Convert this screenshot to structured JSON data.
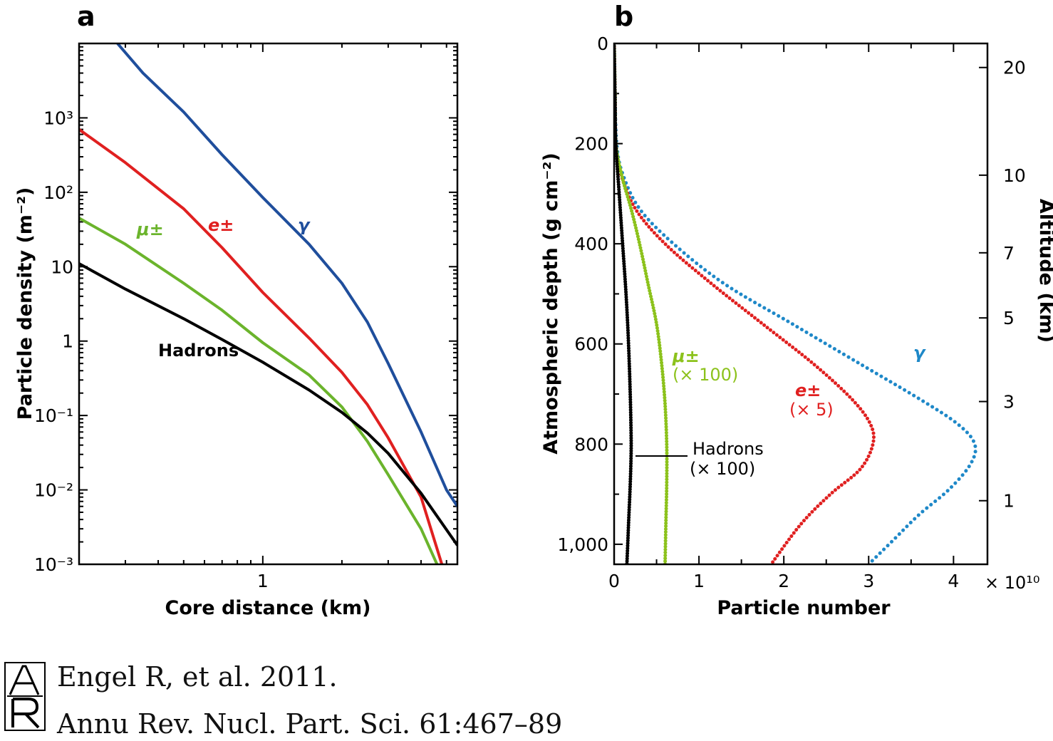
{
  "figure": {
    "colors": {
      "gamma_a": "#1f4e9c",
      "electron": "#e02020",
      "muon": "#6bb42c",
      "hadron": "#000000",
      "gamma_b": "#1e88c8",
      "muon_b": "#8cc21c"
    }
  },
  "chart_data": [
    {
      "panel": "a",
      "type": "line",
      "xlabel": "Core distance (km)",
      "ylabel": "Particle density (m⁻²)",
      "x_scale": "log",
      "y_scale": "log",
      "xlim": [
        0.2,
        5.5
      ],
      "ylim": [
        0.001,
        10000
      ],
      "x_ticks": [
        {
          "v": 1,
          "label": "1"
        }
      ],
      "y_ticks": [
        {
          "v": 1000,
          "label": "10³"
        },
        {
          "v": 100,
          "label": "10²"
        },
        {
          "v": 10,
          "label": "10"
        },
        {
          "v": 1,
          "label": "1"
        },
        {
          "v": 0.1,
          "label": "10⁻¹"
        },
        {
          "v": 0.01,
          "label": "10⁻²"
        },
        {
          "v": 0.001,
          "label": "10⁻³"
        }
      ],
      "series": [
        {
          "name": "γ",
          "color": "#1f4e9c",
          "points": [
            [
              0.28,
              10000
            ],
            [
              0.35,
              4000
            ],
            [
              0.5,
              1200
            ],
            [
              0.7,
              320
            ],
            [
              1,
              85
            ],
            [
              1.5,
              20
            ],
            [
              2,
              6
            ],
            [
              2.5,
              1.8
            ],
            [
              3,
              0.5
            ],
            [
              4,
              0.06
            ],
            [
              5,
              0.01
            ],
            [
              5.5,
              0.006
            ]
          ]
        },
        {
          "name": "e±",
          "color": "#e02020",
          "points": [
            [
              0.2,
              700
            ],
            [
              0.3,
              250
            ],
            [
              0.5,
              60
            ],
            [
              0.7,
              18
            ],
            [
              1,
              4.5
            ],
            [
              1.5,
              1.1
            ],
            [
              2,
              0.38
            ],
            [
              2.5,
              0.14
            ],
            [
              3,
              0.05
            ],
            [
              4,
              0.008
            ],
            [
              4.8,
              0.001
            ]
          ]
        },
        {
          "name": "μ±",
          "color": "#6bb42c",
          "points": [
            [
              0.2,
              45
            ],
            [
              0.3,
              20
            ],
            [
              0.5,
              6
            ],
            [
              0.7,
              2.6
            ],
            [
              1,
              0.95
            ],
            [
              1.5,
              0.35
            ],
            [
              2,
              0.13
            ],
            [
              2.5,
              0.045
            ],
            [
              3,
              0.016
            ],
            [
              4,
              0.003
            ],
            [
              4.6,
              0.001
            ]
          ]
        },
        {
          "name": "Hadrons",
          "color": "#000000",
          "points": [
            [
              0.2,
              11
            ],
            [
              0.3,
              5
            ],
            [
              0.5,
              2
            ],
            [
              0.7,
              1.05
            ],
            [
              1,
              0.52
            ],
            [
              1.5,
              0.22
            ],
            [
              2,
              0.11
            ],
            [
              2.5,
              0.058
            ],
            [
              3,
              0.031
            ],
            [
              4,
              0.009
            ],
            [
              5.5,
              0.0018
            ]
          ]
        }
      ],
      "annotations": [
        {
          "text": "Hadrons"
        }
      ]
    },
    {
      "panel": "b",
      "type": "line",
      "xlabel": "Particle number",
      "ylabel": "Atmospheric depth (g cm⁻²)",
      "y2label": "Altitude (km)",
      "x_multiplier": "× 10¹⁰",
      "xlim": [
        0,
        4.3
      ],
      "ylim": [
        1040,
        0
      ],
      "x_ticks": [
        {
          "v": 0,
          "label": "0"
        },
        {
          "v": 1,
          "label": "1"
        },
        {
          "v": 2,
          "label": "2"
        },
        {
          "v": 3,
          "label": "3"
        },
        {
          "v": 4,
          "label": "4"
        }
      ],
      "y_ticks": [
        {
          "v": 0,
          "label": "0"
        },
        {
          "v": 200,
          "label": "200"
        },
        {
          "v": 400,
          "label": "400"
        },
        {
          "v": 600,
          "label": "600"
        },
        {
          "v": 800,
          "label": "800"
        },
        {
          "v": 1000,
          "label": "1,000"
        }
      ],
      "y2_ticks": [
        {
          "depth": 48,
          "label": "20"
        },
        {
          "depth": 263,
          "label": "10"
        },
        {
          "depth": 418,
          "label": "7"
        },
        {
          "depth": 548,
          "label": "5"
        },
        {
          "depth": 715,
          "label": "3"
        },
        {
          "depth": 913,
          "label": "1"
        }
      ],
      "series": [
        {
          "name": "γ",
          "color": "#1e88c8",
          "points": [
            [
              0,
              0
            ],
            [
              0.01,
              100
            ],
            [
              0.03,
              200
            ],
            [
              0.1,
              260
            ],
            [
              0.3,
              330
            ],
            [
              0.7,
              400
            ],
            [
              1.3,
              480
            ],
            [
              2.1,
              560
            ],
            [
              2.9,
              640
            ],
            [
              3.6,
              710
            ],
            [
              4.05,
              760
            ],
            [
              4.25,
              800
            ],
            [
              4.2,
              840
            ],
            [
              3.95,
              890
            ],
            [
              3.6,
              940
            ],
            [
              3.3,
              990
            ],
            [
              3.0,
              1040
            ]
          ]
        },
        {
          "name": "e±",
          "subtitle": "(× 5)",
          "color": "#e02020",
          "points": [
            [
              0,
              0
            ],
            [
              0.01,
              100
            ],
            [
              0.02,
              200
            ],
            [
              0.08,
              260
            ],
            [
              0.25,
              330
            ],
            [
              0.6,
              400
            ],
            [
              1.15,
              480
            ],
            [
              1.75,
              560
            ],
            [
              2.35,
              640
            ],
            [
              2.8,
              710
            ],
            [
              3.02,
              760
            ],
            [
              3.05,
              800
            ],
            [
              2.9,
              850
            ],
            [
              2.55,
              900
            ],
            [
              2.2,
              960
            ],
            [
              1.85,
              1040
            ]
          ]
        },
        {
          "name": "μ±",
          "subtitle": "(× 100)",
          "color": "#8cc21c",
          "points": [
            [
              0,
              0
            ],
            [
              0.01,
              100
            ],
            [
              0.02,
              200
            ],
            [
              0.1,
              270
            ],
            [
              0.2,
              330
            ],
            [
              0.3,
              400
            ],
            [
              0.4,
              480
            ],
            [
              0.5,
              560
            ],
            [
              0.56,
              640
            ],
            [
              0.6,
              720
            ],
            [
              0.62,
              800
            ],
            [
              0.62,
              880
            ],
            [
              0.61,
              960
            ],
            [
              0.6,
              1040
            ]
          ]
        },
        {
          "name": "Hadrons",
          "subtitle": "(× 100)",
          "color": "#000000",
          "points": [
            [
              0,
              0
            ],
            [
              0.01,
              100
            ],
            [
              0.02,
              200
            ],
            [
              0.06,
              300
            ],
            [
              0.1,
              400
            ],
            [
              0.14,
              500
            ],
            [
              0.17,
              600
            ],
            [
              0.19,
              700
            ],
            [
              0.2,
              780
            ],
            [
              0.2,
              820
            ],
            [
              0.19,
              880
            ],
            [
              0.17,
              960
            ],
            [
              0.15,
              1040
            ]
          ]
        }
      ]
    }
  ],
  "citation": {
    "logo_text": "AR",
    "line1": "Engel R, et al. 2011.",
    "line2": "Annu Rev. Nucl. Part. Sci. 61:467–89"
  }
}
